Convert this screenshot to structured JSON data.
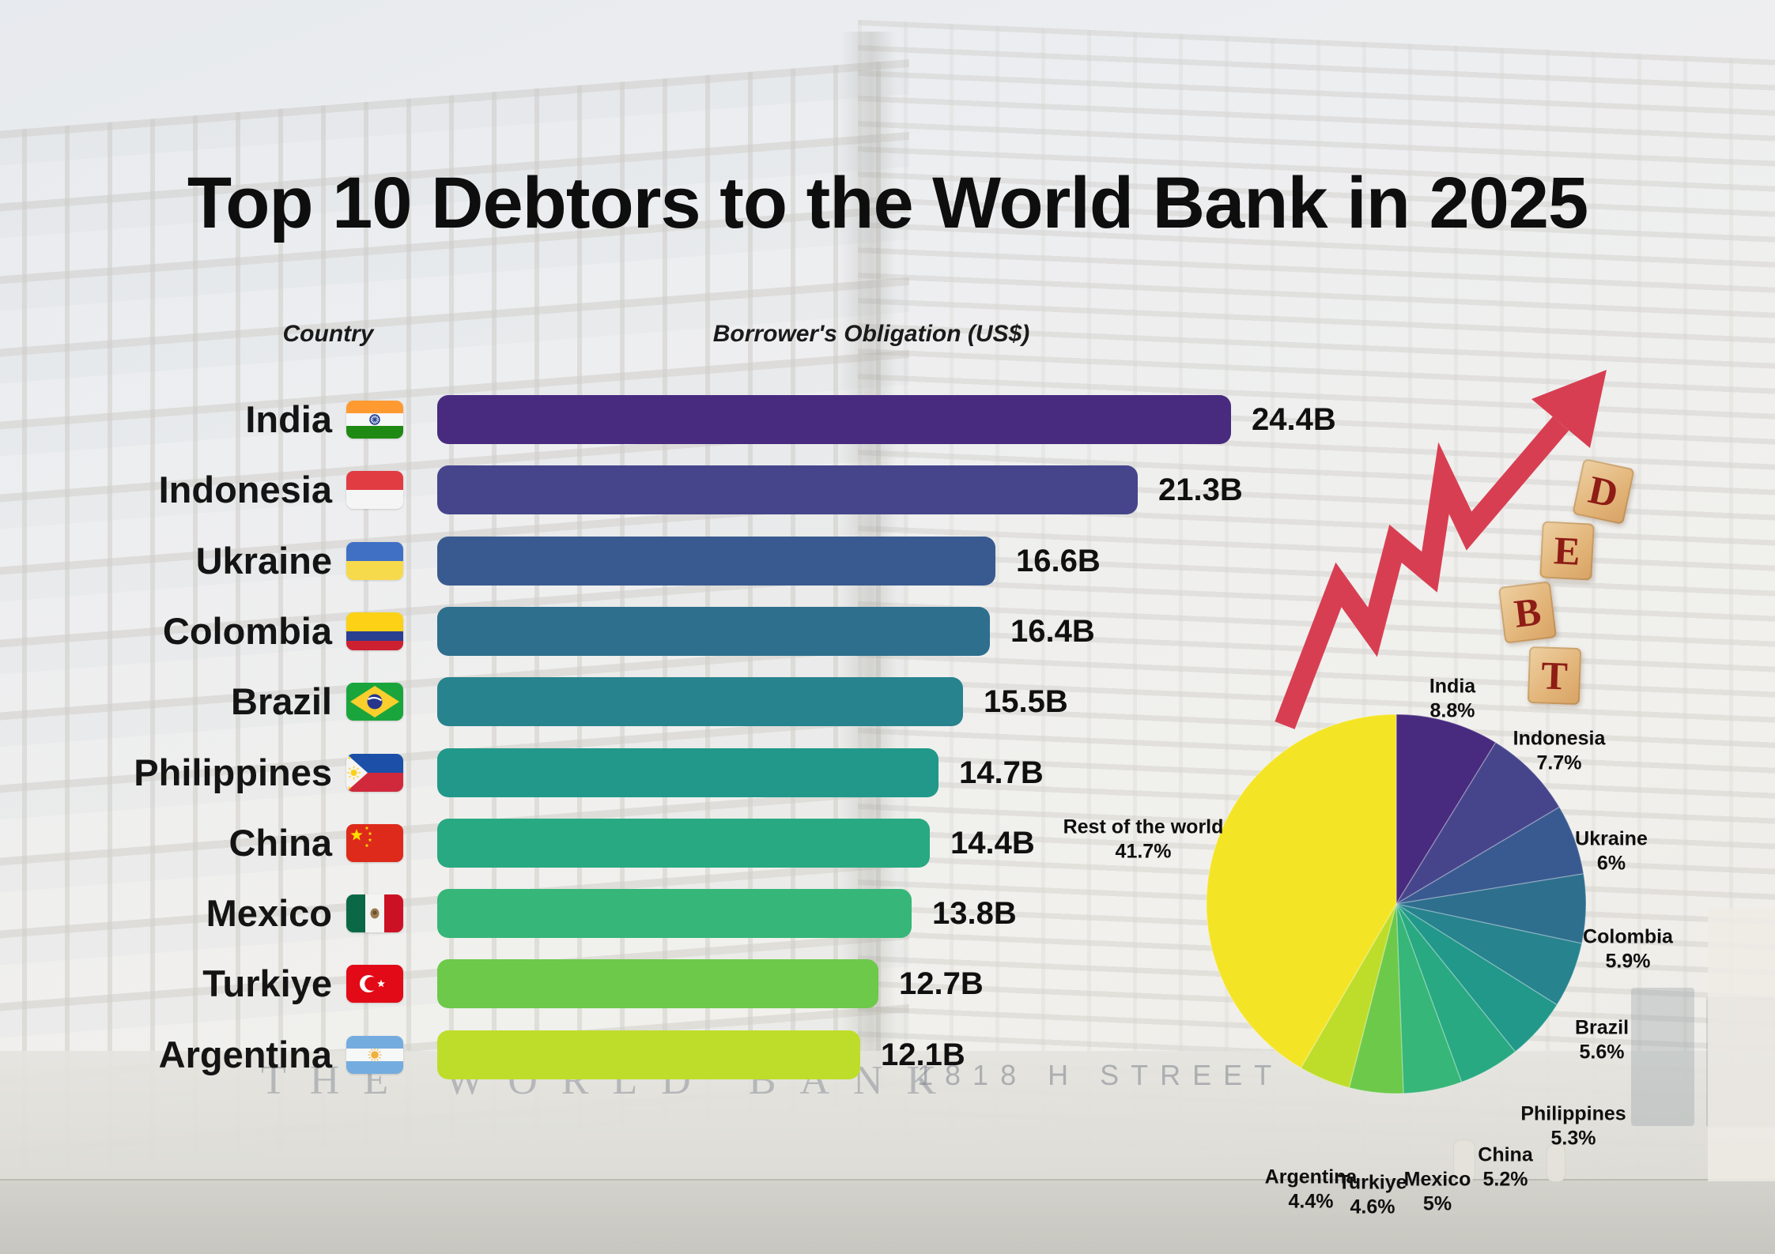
{
  "header": {
    "title": "Top 10 Debtors to the World Bank in 2025"
  },
  "columns": {
    "country": "Country",
    "obligation": "Borrower's Obligation (US$)"
  },
  "background": {
    "wall_sign": "THE WORLD BANK",
    "street_sign": "1818 H STREET",
    "debt_blocks": [
      "D",
      "E",
      "B",
      "T"
    ],
    "arrow_color": "#d83e52",
    "block_letter_color": "#8e1d16"
  },
  "chart_data": [
    {
      "type": "bar",
      "orientation": "horizontal",
      "title": "Top 10 Debtors to the World Bank in 2025",
      "xlabel": "Borrower's Obligation (US$)",
      "unit": "billions of US$",
      "categories": [
        "India",
        "Indonesia",
        "Ukraine",
        "Colombia",
        "Brazil",
        "Philippines",
        "China",
        "Mexico",
        "Turkiye",
        "Argentina"
      ],
      "values": [
        24.4,
        21.3,
        16.6,
        16.4,
        15.5,
        14.7,
        14.4,
        13.8,
        12.7,
        12.1
      ],
      "value_labels": [
        "24.4B",
        "21.3B",
        "16.6B",
        "16.4B",
        "15.5B",
        "14.7B",
        "14.4B",
        "13.8B",
        "12.7B",
        "12.1B"
      ],
      "colors": [
        "#482b7e",
        "#46458c",
        "#395a90",
        "#2e6f8e",
        "#27838e",
        "#21988a",
        "#28a981",
        "#36b678",
        "#6dc94a",
        "#bedd2b"
      ],
      "flags": [
        "india-flag",
        "indonesia-flag",
        "ukraine-flag",
        "colombia-flag",
        "brazil-flag",
        "philippines-flag",
        "china-flag",
        "mexico-flag",
        "turkiye-flag",
        "argentina-flag"
      ],
      "xlim": [
        0,
        26
      ],
      "grid": false,
      "legend": false
    },
    {
      "type": "pie",
      "labels": [
        "India",
        "Indonesia",
        "Ukraine",
        "Colombia",
        "Brazil",
        "Philippines",
        "China",
        "Mexico",
        "Turkiye",
        "Argentina",
        "Rest of the world"
      ],
      "values": [
        8.8,
        7.7,
        6,
        5.9,
        5.6,
        5.3,
        5.2,
        5,
        4.6,
        4.4,
        41.7
      ],
      "value_labels": [
        "8.8%",
        "7.7%",
        "6%",
        "5.9%",
        "5.6%",
        "5.3%",
        "5.2%",
        "5%",
        "4.6%",
        "4.4%",
        "41.7%"
      ],
      "colors": [
        "#482b7e",
        "#46458c",
        "#395a90",
        "#2e6f8e",
        "#27838e",
        "#21988a",
        "#28a981",
        "#36b678",
        "#6dc94a",
        "#bedd2b",
        "#f4e426"
      ],
      "start_angle": "12 o'clock, clockwise",
      "legend": false
    }
  ]
}
